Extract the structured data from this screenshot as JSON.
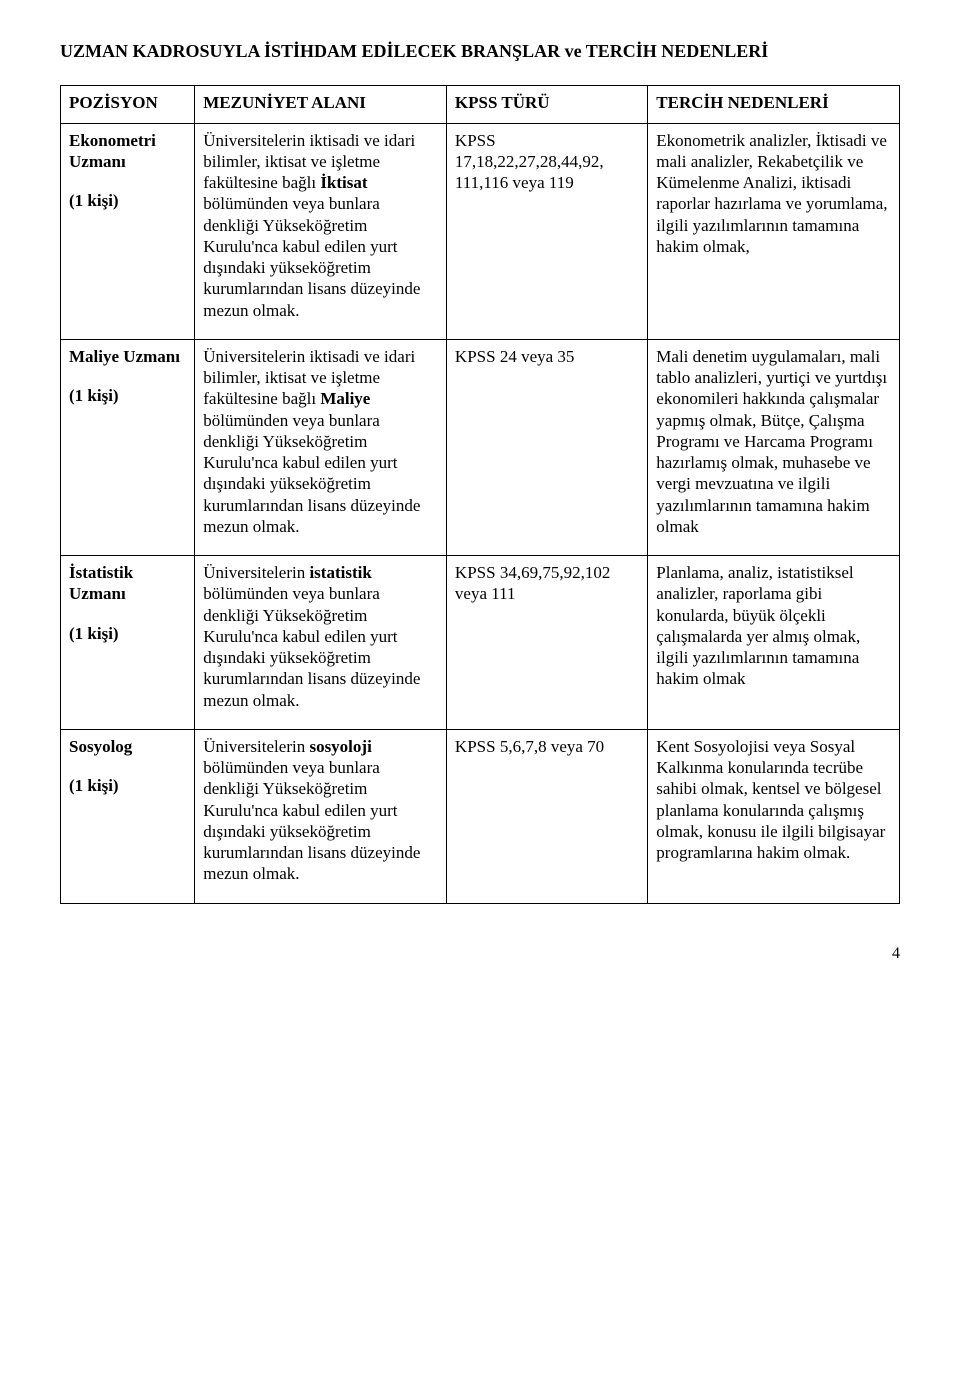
{
  "title": "UZMAN KADROSUYLA İSTİHDAM EDİLECEK BRANŞLAR ve TERCİH NEDENLERİ",
  "headers": {
    "pos": "POZİSYON",
    "mez": "MEZUNİYET ALANI",
    "kpss": "KPSS TÜRÜ",
    "tercih": "TERCİH NEDENLERİ"
  },
  "rows": [
    {
      "position_name": "Ekonometri\nUzmanı",
      "position_count": "(1 kişi)",
      "mez_prefix": "Üniversitelerin iktisadi ve idari bilimler, iktisat ve işletme  fakültesine bağlı ",
      "mez_bold": "İktisat",
      "mez_suffix": " bölümünden veya bunlara denkliği Yükseköğretim Kurulu'nca kabul edilen yurt dışındaki yükseköğretim kurumlarından lisans düzeyinde mezun olmak.",
      "kpss": "KPSS 17,18,22,27,28,44,92, 111,116  veya 119",
      "tercih": "Ekonometrik analizler, İktisadi ve mali analizler, Rekabetçilik ve Kümelenme Analizi, iktisadi raporlar hazırlama ve yorumlama, ilgili yazılımlarının tamamına hakim olmak,"
    },
    {
      "position_name": "Maliye Uzmanı",
      "position_count": "(1 kişi)",
      "mez_prefix": "Üniversitelerin iktisadi ve idari bilimler, iktisat ve işletme fakültesine bağlı ",
      "mez_bold": "Maliye",
      "mez_suffix": " bölümünden veya bunlara denkliği Yükseköğretim Kurulu'nca kabul edilen yurt dışındaki yükseköğretim kurumlarından lisans düzeyinde mezun olmak.",
      "kpss": "KPSS 24 veya 35",
      "tercih": "Mali denetim uygulamaları, mali tablo analizleri, yurtiçi ve yurtdışı ekonomileri hakkında çalışmalar yapmış olmak, Bütçe, Çalışma Programı ve Harcama Programı hazırlamış olmak, muhasebe ve vergi mevzuatına ve  ilgili yazılımlarının tamamına hakim olmak"
    },
    {
      "position_name": "İstatistik\nUzmanı",
      "position_count": "(1 kişi)",
      "mez_prefix": "Üniversitelerin ",
      "mez_bold": "istatistik",
      "mez_suffix": " bölümünden veya bunlara denkliği Yükseköğretim Kurulu'nca kabul edilen yurt dışındaki yükseköğretim kurumlarından lisans düzeyinde mezun olmak.",
      "kpss": "KPSS 34,69,75,92,102 veya 111",
      "tercih": "Planlama, analiz, istatistiksel analizler, raporlama gibi konularda, büyük ölçekli çalışmalarda yer almış olmak, ilgili yazılımlarının tamamına hakim olmak"
    },
    {
      "position_name": "Sosyolog",
      "position_count": "(1 kişi)",
      "mez_prefix": "Üniversitelerin ",
      "mez_bold": "sosyoloji",
      "mez_suffix": " bölümünden veya bunlara denkliği Yükseköğretim Kurulu'nca kabul edilen yurt dışındaki yükseköğretim kurumlarından lisans düzeyinde mezun olmak.",
      "kpss": "KPSS 5,6,7,8 veya 70",
      "tercih": "Kent Sosyolojisi veya Sosyal Kalkınma konularında tecrübe sahibi olmak, kentsel ve bölgesel planlama konularında çalışmış olmak, konusu ile ilgili bilgisayar programlarına hakim olmak."
    }
  ],
  "page_number": "4"
}
